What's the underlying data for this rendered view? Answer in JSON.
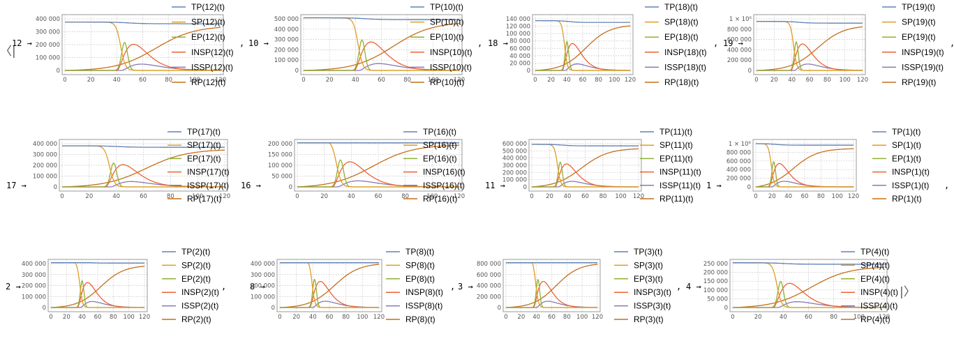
{
  "chart_data": [
    {
      "type": "line",
      "key": "12",
      "xlim": [
        0,
        120
      ],
      "ylim": [
        0,
        400000
      ],
      "xticks": [
        0,
        20,
        40,
        60,
        80,
        100,
        120
      ],
      "yticks": [
        0,
        100000,
        200000,
        300000,
        400000
      ],
      "ytick_labels": [
        "0",
        "100 000",
        "200 000",
        "300 000",
        "400 000"
      ],
      "N": 375000,
      "tpeak": 44,
      "legend": [
        "TP(12)(t)",
        "SP(12)(t)",
        "EP(12)(t)",
        "INSP(12)(t)",
        "ISSP(12)(t)",
        "RP(12)(t)"
      ]
    },
    {
      "type": "line",
      "key": "10",
      "xlim": [
        0,
        120
      ],
      "ylim": [
        0,
        500000
      ],
      "xticks": [
        0,
        20,
        40,
        60,
        80,
        100,
        120
      ],
      "yticks": [
        0,
        100000,
        200000,
        300000,
        400000,
        500000
      ],
      "ytick_labels": [
        "0",
        "100 000",
        "200 000",
        "300 000",
        "400 000",
        "500 000"
      ],
      "N": 510000,
      "tpeak": 43,
      "legend": [
        "TP(10)(t)",
        "SP(10)(t)",
        "EP(10)(t)",
        "INSP(10)(t)",
        "ISSP(10)(t)",
        "RP(10)(t)"
      ]
    },
    {
      "type": "line",
      "key": "18",
      "xlim": [
        0,
        120
      ],
      "ylim": [
        0,
        140000
      ],
      "xticks": [
        0,
        20,
        40,
        60,
        80,
        100,
        120
      ],
      "yticks": [
        0,
        20000,
        40000,
        60000,
        80000,
        100000,
        120000,
        140000
      ],
      "ytick_labels": [
        "0",
        "20 000",
        "40 000",
        "60 000",
        "80 000",
        "100 000",
        "120 000",
        "140 000"
      ],
      "N": 135000,
      "tpeak": 38,
      "legend": [
        "TP(18)(t)",
        "SP(18)(t)",
        "EP(18)(t)",
        "INSP(18)(t)",
        "ISSP(18)(t)",
        "RP(18)(t)"
      ]
    },
    {
      "type": "line",
      "key": "19",
      "xlim": [
        0,
        120
      ],
      "ylim": [
        0,
        1000000
      ],
      "xticks": [
        0,
        20,
        40,
        60,
        80,
        100,
        120
      ],
      "yticks": [
        0,
        200000,
        400000,
        600000,
        800000,
        1000000
      ],
      "ytick_labels": [
        "0",
        "200 000",
        "400 000",
        "600 000",
        "800 000",
        "1 × 10⁶"
      ],
      "N": 950000,
      "tpeak": 43,
      "legend": [
        "TP(19)(t)",
        "SP(19)(t)",
        "EP(19)(t)",
        "INSP(19)(t)",
        "ISSP(19)(t)",
        "RP(19)(t)"
      ]
    },
    {
      "type": "line",
      "key": "17",
      "xlim": [
        0,
        120
      ],
      "ylim": [
        0,
        400000
      ],
      "xticks": [
        0,
        20,
        40,
        60,
        80,
        100,
        120
      ],
      "yticks": [
        0,
        100000,
        200000,
        300000,
        400000
      ],
      "ytick_labels": [
        "0",
        "100 000",
        "200 000",
        "300 000",
        "400 000"
      ],
      "N": 380000,
      "tpeak": 36,
      "legend": [
        "TP(17)(t)",
        "SP(17)(t)",
        "EP(17)(t)",
        "INSP(17)(t)",
        "ISSP(17)(t)",
        "RP(17)(t)"
      ]
    },
    {
      "type": "line",
      "key": "16",
      "xlim": [
        0,
        120
      ],
      "ylim": [
        0,
        200000
      ],
      "xticks": [
        0,
        20,
        40,
        60,
        80,
        100,
        120
      ],
      "yticks": [
        0,
        50000,
        100000,
        150000,
        200000
      ],
      "ytick_labels": [
        "0",
        "50 000",
        "100 000",
        "150 000",
        "200 000"
      ],
      "N": 215000,
      "tpeak": 30,
      "legend": [
        "TP(16)(t)",
        "SP(16)(t)",
        "EP(16)(t)",
        "INSP(16)(t)",
        "ISSP(16)(t)",
        "RP(16)(t)"
      ]
    },
    {
      "type": "line",
      "key": "11",
      "xlim": [
        0,
        120
      ],
      "ylim": [
        0,
        600000
      ],
      "xticks": [
        0,
        20,
        40,
        60,
        80,
        100,
        120
      ],
      "yticks": [
        0,
        100000,
        200000,
        300000,
        400000,
        500000,
        600000
      ],
      "ytick_labels": [
        "0",
        "100 000",
        "200 000",
        "300 000",
        "400 000",
        "500 000",
        "600 000"
      ],
      "N": 590000,
      "tpeak": 30,
      "legend": [
        "TP(11)(t)",
        "SP(11)(t)",
        "EP(11)(t)",
        "INSP(11)(t)",
        "ISSP(11)(t)",
        "RP(11)(t)"
      ]
    },
    {
      "type": "line",
      "key": "1",
      "xlim": [
        0,
        120
      ],
      "ylim": [
        0,
        1000000
      ],
      "xticks": [
        0,
        20,
        40,
        60,
        80,
        100,
        120
      ],
      "yticks": [
        0,
        200000,
        400000,
        600000,
        800000,
        1000000
      ],
      "ytick_labels": [
        "0",
        "200 000",
        "400 000",
        "600 000",
        "800 000",
        "1 × 10⁶"
      ],
      "N": 1000000,
      "tpeak": 20,
      "legend": [
        "TP(1)(t)",
        "SP(1)(t)",
        "EP(1)(t)",
        "INSP(1)(t)",
        "ISSP(1)(t)",
        "RP(1)(t)"
      ]
    },
    {
      "type": "line",
      "key": "2",
      "xlim": [
        0,
        120
      ],
      "ylim": [
        0,
        400000
      ],
      "xticks": [
        0,
        20,
        40,
        60,
        80,
        100,
        120
      ],
      "yticks": [
        0,
        100000,
        200000,
        300000,
        400000
      ],
      "ytick_labels": [
        "0",
        "100 000",
        "200 000",
        "300 000",
        "400 000"
      ],
      "N": 420000,
      "tpeak": 38,
      "legend": [
        "TP(2)(t)",
        "SP(2)(t)",
        "EP(2)(t)",
        "INSP(2)(t)",
        "ISSP(2)(t)",
        "RP(2)(t)"
      ]
    },
    {
      "type": "line",
      "key": "8",
      "xlim": [
        0,
        120
      ],
      "ylim": [
        0,
        400000
      ],
      "xticks": [
        0,
        20,
        40,
        60,
        80,
        100,
        120
      ],
      "yticks": [
        0,
        100000,
        200000,
        300000,
        400000
      ],
      "ytick_labels": [
        "0",
        "100 000",
        "200 000",
        "300 000",
        "400 000"
      ],
      "N": 440000,
      "tpeak": 40,
      "legend": [
        "TP(8)(t)",
        "SP(8)(t)",
        "EP(8)(t)",
        "INSP(8)(t)",
        "ISSP(8)(t)",
        "RP(8)(t)"
      ]
    },
    {
      "type": "line",
      "key": "3",
      "xlim": [
        0,
        120
      ],
      "ylim": [
        0,
        800000
      ],
      "xticks": [
        0,
        20,
        40,
        60,
        80,
        100,
        120
      ],
      "yticks": [
        0,
        200000,
        400000,
        600000,
        800000
      ],
      "ytick_labels": [
        "0",
        "200 000",
        "400 000",
        "600 000",
        "800 000"
      ],
      "N": 880000,
      "tpeak": 40,
      "legend": [
        "TP(3)(t)",
        "SP(3)(t)",
        "EP(3)(t)",
        "INSP(3)(t)",
        "ISSP(3)(t)",
        "RP(3)(t)"
      ]
    },
    {
      "type": "line",
      "key": "4",
      "xlim": [
        0,
        120
      ],
      "ylim": [
        0,
        250000
      ],
      "xticks": [
        0,
        20,
        40,
        60,
        80,
        100,
        120
      ],
      "yticks": [
        0,
        50000,
        100000,
        150000,
        200000,
        250000
      ],
      "ytick_labels": [
        "0",
        "50 000",
        "100 000",
        "150 000",
        "200 000",
        "250 000"
      ],
      "N": 255000,
      "tpeak": 36,
      "legend": [
        "TP(4)(t)",
        "SP(4)(t)",
        "EP(4)(t)",
        "INSP(4)(t)",
        "ISSP(4)(t)",
        "RP(4)(t)"
      ]
    }
  ],
  "series_colors": [
    "#5e81b5",
    "#e19c24",
    "#8fb032",
    "#eb6235",
    "#8778b3",
    "#c56e1a"
  ],
  "text": {
    "open_bracket": "〈|",
    "close_bracket": "|〉",
    "arrow": "→",
    "comma": ","
  }
}
